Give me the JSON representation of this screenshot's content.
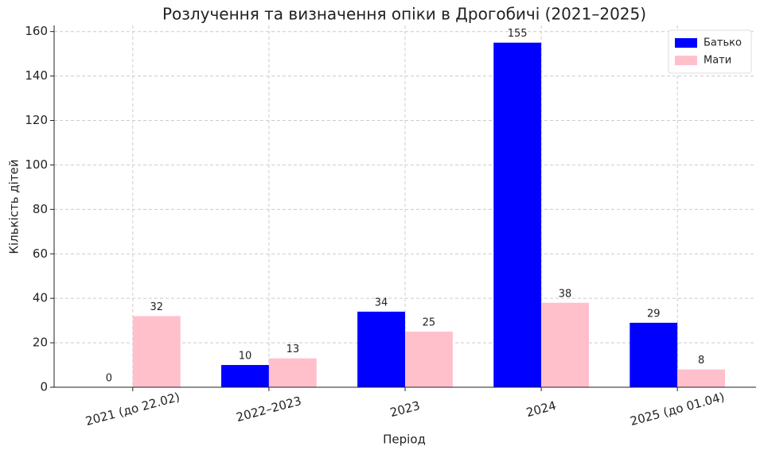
{
  "chart_data": {
    "type": "bar",
    "title": "Розлучення та визначення опіки в Дрогобичі (2021–2025)",
    "x_label": "Період",
    "y_label": "Кількість дітей",
    "categories": [
      "2021 (до 22.02)",
      "2022–2023",
      "2023",
      "2024",
      "2025 (до 01.04)"
    ],
    "series": [
      {
        "name": "Батько",
        "color": "#0000ff",
        "values": [
          0,
          10,
          34,
          155,
          29
        ]
      },
      {
        "name": "Мати",
        "color": "#ffc0cb",
        "values": [
          32,
          13,
          25,
          38,
          8
        ]
      }
    ],
    "ylim": [
      0,
      162.75
    ],
    "yticks": [
      0,
      20,
      40,
      60,
      80,
      100,
      120,
      140,
      160
    ],
    "grid": true,
    "legend": "upper right"
  }
}
